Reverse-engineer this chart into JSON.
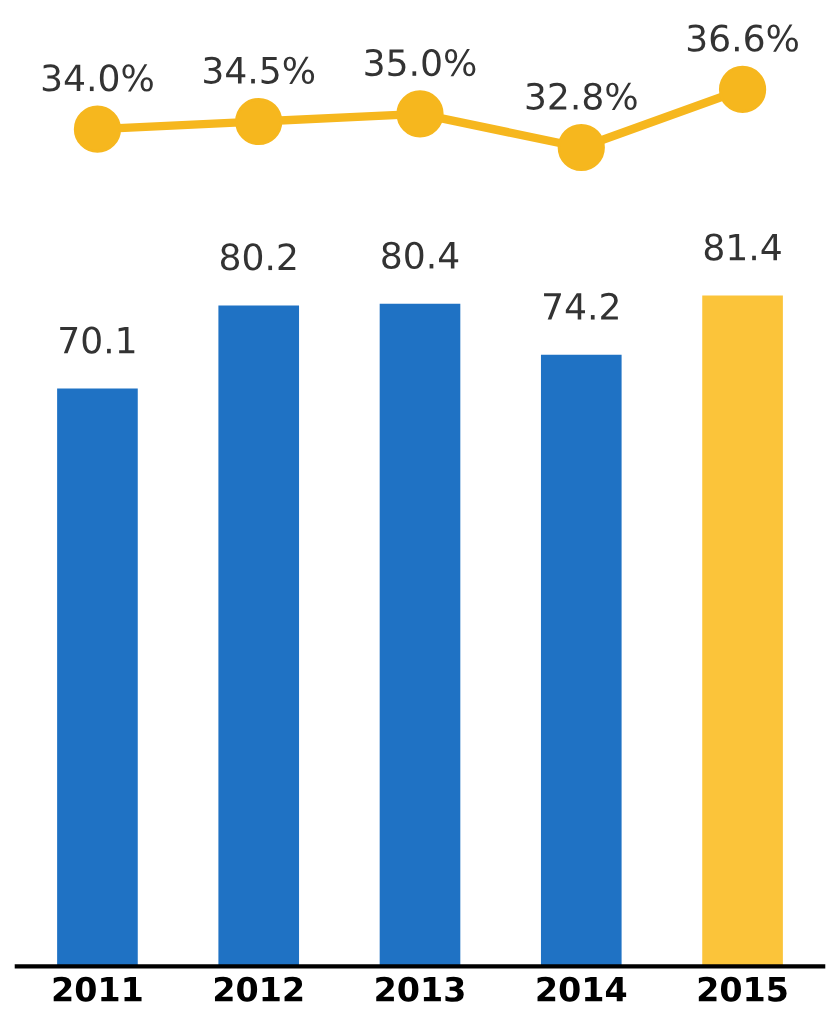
{
  "chart_data": [
    {
      "type": "line",
      "categories": [
        "2011",
        "2012",
        "2013",
        "2014",
        "2015"
      ],
      "values": [
        34.0,
        34.5,
        35.0,
        32.8,
        36.6
      ],
      "color": "#f6b71e",
      "marker": "circle",
      "value_labels": [
        "34.0%",
        "34.5%",
        "35.0%",
        "32.8%",
        "36.6%"
      ],
      "tick_labels": false
    },
    {
      "type": "bar",
      "categories": [
        "2011",
        "2012",
        "2013",
        "2014",
        "2015"
      ],
      "values": [
        70.1,
        80.2,
        80.4,
        74.2,
        81.4
      ],
      "colors": [
        "#1f72c4",
        "#1f72c4",
        "#1f72c4",
        "#1f72c4",
        "#fbc43a"
      ],
      "data_labels": true,
      "tick_labels": "x"
    }
  ]
}
